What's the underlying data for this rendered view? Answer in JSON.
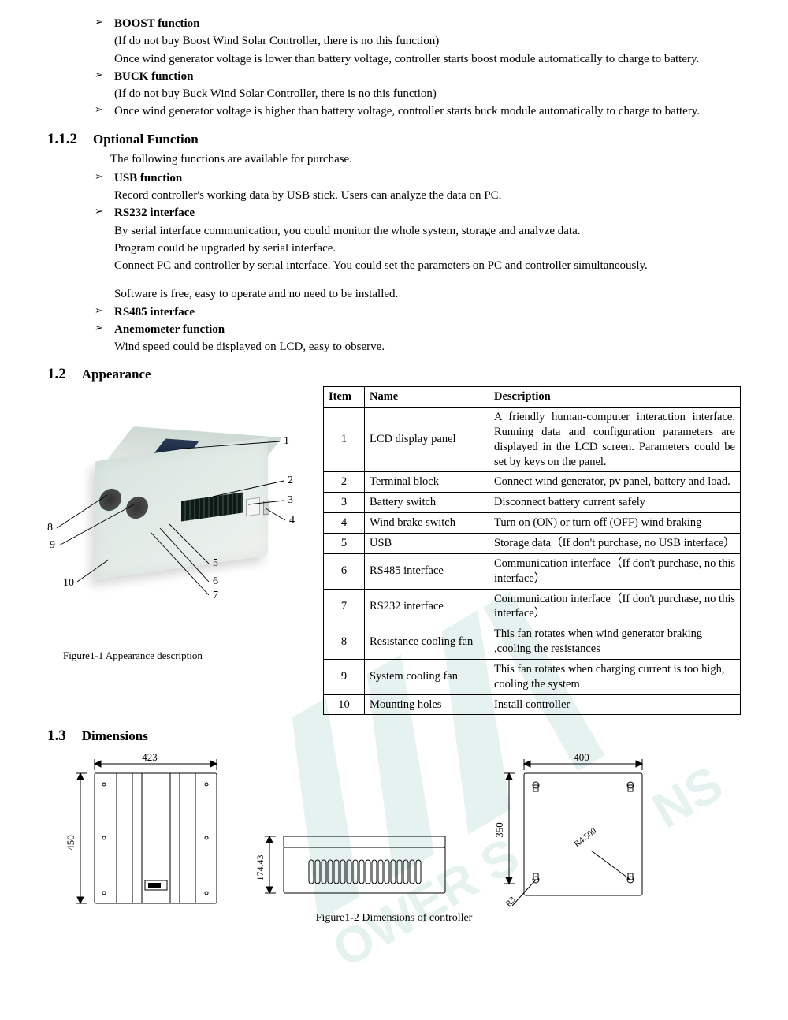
{
  "boost": {
    "title": "BOOST function",
    "note": "(If do not buy Boost Wind Solar Controller, there is no this function)",
    "body": "Once wind generator voltage is lower than battery voltage, controller starts boost module automatically to charge to battery."
  },
  "buck": {
    "title": "BUCK function",
    "note": "(If do not buy Buck Wind Solar Controller, there is no this function)",
    "body": "Once wind generator voltage is higher than battery voltage, controller starts buck module automatically to charge to battery."
  },
  "sec112": {
    "num": "1.1.2",
    "title": "Optional Function",
    "intro": "The following functions are available for purchase."
  },
  "usb": {
    "title": "USB function",
    "body": "Record controller's working data by USB stick. Users can analyze the data on PC."
  },
  "rs232": {
    "title": "RS232 interface",
    "l1": "By serial interface communication, you could monitor the whole system, storage and analyze data.",
    "l2": "Program could be upgraded by serial interface.",
    "l3": "Connect PC and controller by serial interface. You could set the parameters on PC and controller simultaneously.",
    "l4": "Software is free, easy to operate and no need to be installed."
  },
  "rs485": {
    "title": "RS485 interface"
  },
  "anem": {
    "title": "Anemometer function",
    "body": "Wind speed could be displayed on LCD, easy to observe."
  },
  "sec12": {
    "num": "1.2",
    "title": "Appearance"
  },
  "fig11": {
    "caption": "Figure1-1 Appearance description"
  },
  "table": {
    "headers": {
      "item": "Item",
      "name": "Name",
      "desc": "Description"
    },
    "rows": [
      {
        "item": "1",
        "name": "LCD display panel",
        "desc": "A friendly human-computer interaction interface. Running data and configuration parameters are displayed in the LCD screen. Parameters could be set by keys on the panel."
      },
      {
        "item": "2",
        "name": "Terminal block",
        "desc": "Connect wind generator, pv panel, battery and load."
      },
      {
        "item": "3",
        "name": "Battery switch",
        "desc": "Disconnect battery current safely"
      },
      {
        "item": "4",
        "name": "Wind brake switch",
        "desc": "Turn on (ON) or turn off (OFF) wind braking"
      },
      {
        "item": "5",
        "name": "USB",
        "desc": "Storage data（If don't purchase, no USB interface）"
      },
      {
        "item": "6",
        "name": "RS485 interface",
        "desc": "Communication interface（If don't purchase, no this interface）"
      },
      {
        "item": "7",
        "name": "RS232 interface",
        "desc": "Communication interface（If don't purchase, no this interface）"
      },
      {
        "item": "8",
        "name": "Resistance cooling fan",
        "desc": "This fan rotates when wind generator braking ,cooling the resistances"
      },
      {
        "item": "9",
        "name": "System cooling fan",
        "desc": "This fan rotates when charging current is too high, cooling the system"
      },
      {
        "item": "10",
        "name": "Mounting holes",
        "desc": "Install controller"
      }
    ]
  },
  "sec13": {
    "num": "1.3",
    "title": "Dimensions"
  },
  "dims": {
    "front": {
      "w": "423",
      "h": "450"
    },
    "side": {
      "h": "174.43"
    },
    "back": {
      "w": "400",
      "h": "350",
      "r_small": "R3",
      "r_big": "R4.500"
    },
    "caption": "Figure1-2 Dimensions of controller"
  },
  "callouts": {
    "n1": "1",
    "n2": "2",
    "n3": "3",
    "n4": "4",
    "n5": "5",
    "n6": "6",
    "n7": "7",
    "n8": "8",
    "n9": "9",
    "n10": "10"
  }
}
